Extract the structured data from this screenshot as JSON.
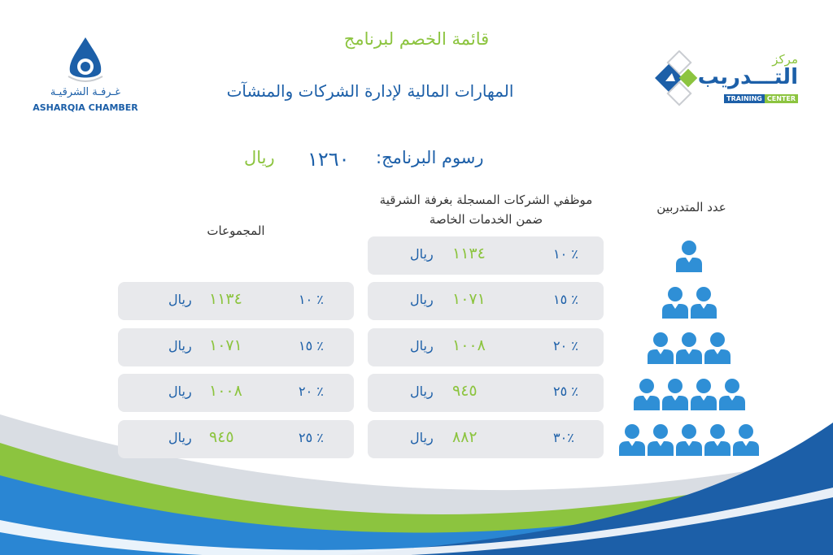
{
  "header": {
    "title_green": "قائمة الخصم لبرنامج",
    "title_blue": "المهارات المالية لإدارة الشركات والمنشآت"
  },
  "fee": {
    "label": "رسوم البرنامج:",
    "value": "١٢٦٠",
    "unit": "ريال"
  },
  "logos": {
    "right": {
      "line1": "مركز",
      "line2": "التـــدريب",
      "tag_a": "TRAINING",
      "tag_b": "CENTER"
    },
    "left": {
      "arabic": "غـرفـة الشرقيـة",
      "english": "ASHARQIA CHAMBER"
    }
  },
  "columns": {
    "trainees": "عدد المتدربين",
    "employees": "موظفي الشركات المسجلة بغرفة الشرقية ضمن الخدمات الخاصة",
    "groups": "المجموعات"
  },
  "employees_rows": [
    {
      "pct": "١٠ ٪",
      "value": "١١٣٤",
      "unit": "ريال"
    },
    {
      "pct": "١٥ ٪",
      "value": "١٠٧١",
      "unit": "ريال"
    },
    {
      "pct": "٢٠ ٪",
      "value": "١٠٠٨",
      "unit": "ريال"
    },
    {
      "pct": "٢٥ ٪",
      "value": "٩٤٥",
      "unit": "ريال"
    },
    {
      "pct": "٣٠٪",
      "value": "٨٨٢",
      "unit": "ريال"
    }
  ],
  "groups_rows": [
    {
      "pct": "١٠ ٪",
      "value": "١١٣٤",
      "unit": "ريال"
    },
    {
      "pct": "١٥ ٪",
      "value": "١٠٧١",
      "unit": "ريال"
    },
    {
      "pct": "٢٠ ٪",
      "value": "١٠٠٨",
      "unit": "ريال"
    },
    {
      "pct": "٢٥ ٪",
      "value": "٩٤٥",
      "unit": "ريال"
    }
  ],
  "trainee_counts": [
    1,
    2,
    3,
    4,
    5
  ],
  "colors": {
    "blue": "#1c5fa8",
    "green": "#8cc43f",
    "row_bg": "#e8e9ec",
    "person": "#2f8fd6"
  }
}
